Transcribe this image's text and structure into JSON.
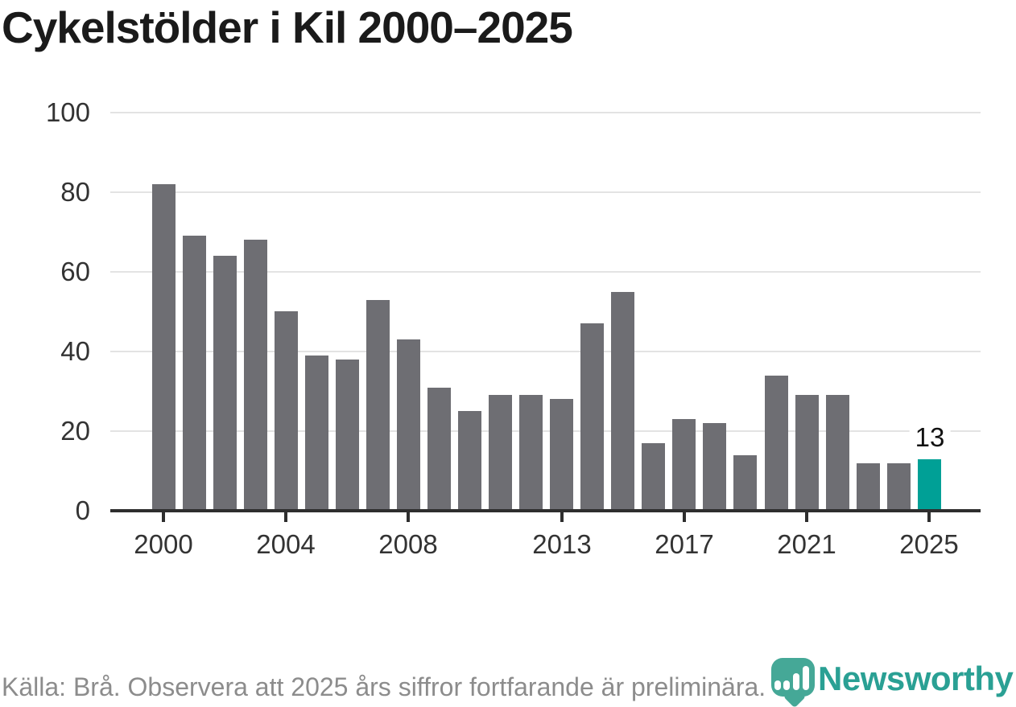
{
  "title": "Cykelstölder i Kil 2000–2025",
  "footer": {
    "source_note": "Källa: Brå. Observera att 2025 års siffror fortfarande är preliminära."
  },
  "branding": {
    "wordmark": "Newsworthy",
    "wordmark_color": "#2AA094",
    "icon_color": "#45A897",
    "icon": "bar-chart-pin-icon"
  },
  "chart_data": {
    "type": "bar",
    "title": "Cykelstölder i Kil 2000–2025",
    "xlabel": "",
    "ylabel": "",
    "x": [
      2000,
      2001,
      2002,
      2003,
      2004,
      2005,
      2006,
      2007,
      2008,
      2009,
      2010,
      2011,
      2012,
      2013,
      2014,
      2015,
      2016,
      2017,
      2018,
      2019,
      2020,
      2021,
      2022,
      2023,
      2024,
      2025
    ],
    "values": [
      82,
      69,
      64,
      68,
      50,
      39,
      38,
      53,
      43,
      31,
      25,
      29,
      29,
      28,
      47,
      55,
      17,
      23,
      22,
      14,
      34,
      29,
      29,
      12,
      12,
      13
    ],
    "ylim": [
      0,
      100
    ],
    "yticks": [
      0,
      20,
      40,
      60,
      80,
      100
    ],
    "xtick_years": [
      2000,
      2004,
      2008,
      2013,
      2017,
      2021,
      2025
    ],
    "grid": true,
    "legend": "none",
    "bar_color": "#6E6E73",
    "highlight_index": 25,
    "highlight_color": "#00A096",
    "highlight_value_label": "13",
    "gridline_color": "#E3E3E3",
    "axis_color": "#2E2E2E"
  }
}
